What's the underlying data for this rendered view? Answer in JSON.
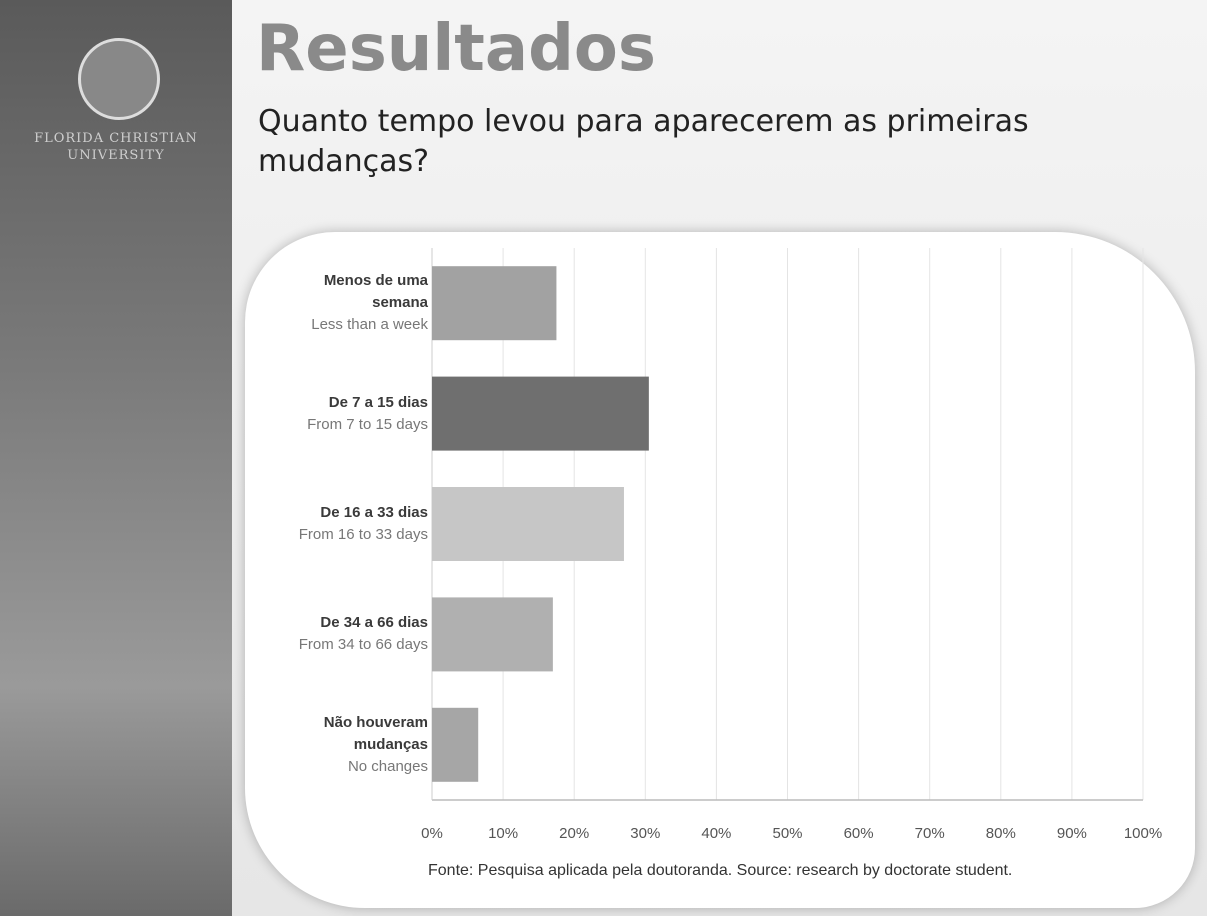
{
  "sidebar": {
    "university": "FLORIDA CHRISTIAN UNIVERSITY"
  },
  "chart_data": {
    "type": "bar",
    "orientation": "horizontal",
    "title": "Resultados",
    "subtitle": "Quanto tempo levou para aparecerem as primeiras mudanças?",
    "categories": [
      {
        "pt": "Menos de uma semana",
        "en": "Less than a week"
      },
      {
        "pt": "De 7 a 15 dias",
        "en": "From 7 to 15 days"
      },
      {
        "pt": "De 16 a 33 dias",
        "en": "From 16 to 33 days"
      },
      {
        "pt": "De 34 a 66 dias",
        "en": "From 34 to 66 days"
      },
      {
        "pt": "Não houveram mudanças",
        "en": "No changes"
      }
    ],
    "values": [
      17.5,
      30.5,
      27,
      17,
      6.5
    ],
    "colors": [
      "#a2a2a2",
      "#6f6f6f",
      "#c6c6c6",
      "#b0b0b0",
      "#a6a6a6"
    ],
    "xlim": [
      0,
      100
    ],
    "xticks": [
      {
        "value": 0,
        "label": "0%"
      },
      {
        "value": 10,
        "label": "10%"
      },
      {
        "value": 20,
        "label": "20%"
      },
      {
        "value": 30,
        "label": "30%"
      },
      {
        "value": 40,
        "label": "40%"
      },
      {
        "value": 50,
        "label": "50%"
      },
      {
        "value": 60,
        "label": "60%"
      },
      {
        "value": 70,
        "label": "70%"
      },
      {
        "value": 80,
        "label": "80%"
      },
      {
        "value": 90,
        "label": "90%"
      },
      {
        "value": 100,
        "label": "100%"
      }
    ],
    "grid": true,
    "source": "Fonte: Pesquisa aplicada pela doutoranda. Source: research by doctorate student."
  }
}
